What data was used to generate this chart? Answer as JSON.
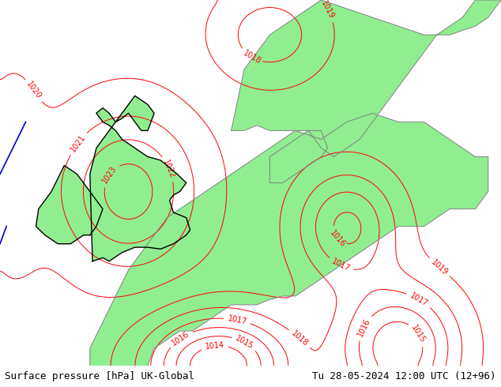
{
  "title_left": "Surface pressure [hPa] UK-Global",
  "title_right": "Tu 28-05-2024 12:00 UTC (12+96)",
  "bg_color_ocean": "#c8c8c8",
  "bg_color_land": "#90ee90",
  "contour_color_red": "#ff0000",
  "contour_color_gray": "#808080",
  "contour_color_black": "#000000",
  "contour_color_blue": "#0000cc",
  "bottom_bar_color": "#ffffff",
  "bottom_text_color": "#000000",
  "figsize": [
    6.34,
    4.9
  ],
  "dpi": 100,
  "font_size_bottom": 9,
  "xlim": [
    -13,
    26
  ],
  "ylim": [
    44,
    65
  ],
  "pressure_min": 1006,
  "pressure_max": 1028,
  "pressure_step": 1,
  "label_fontsize": 7
}
